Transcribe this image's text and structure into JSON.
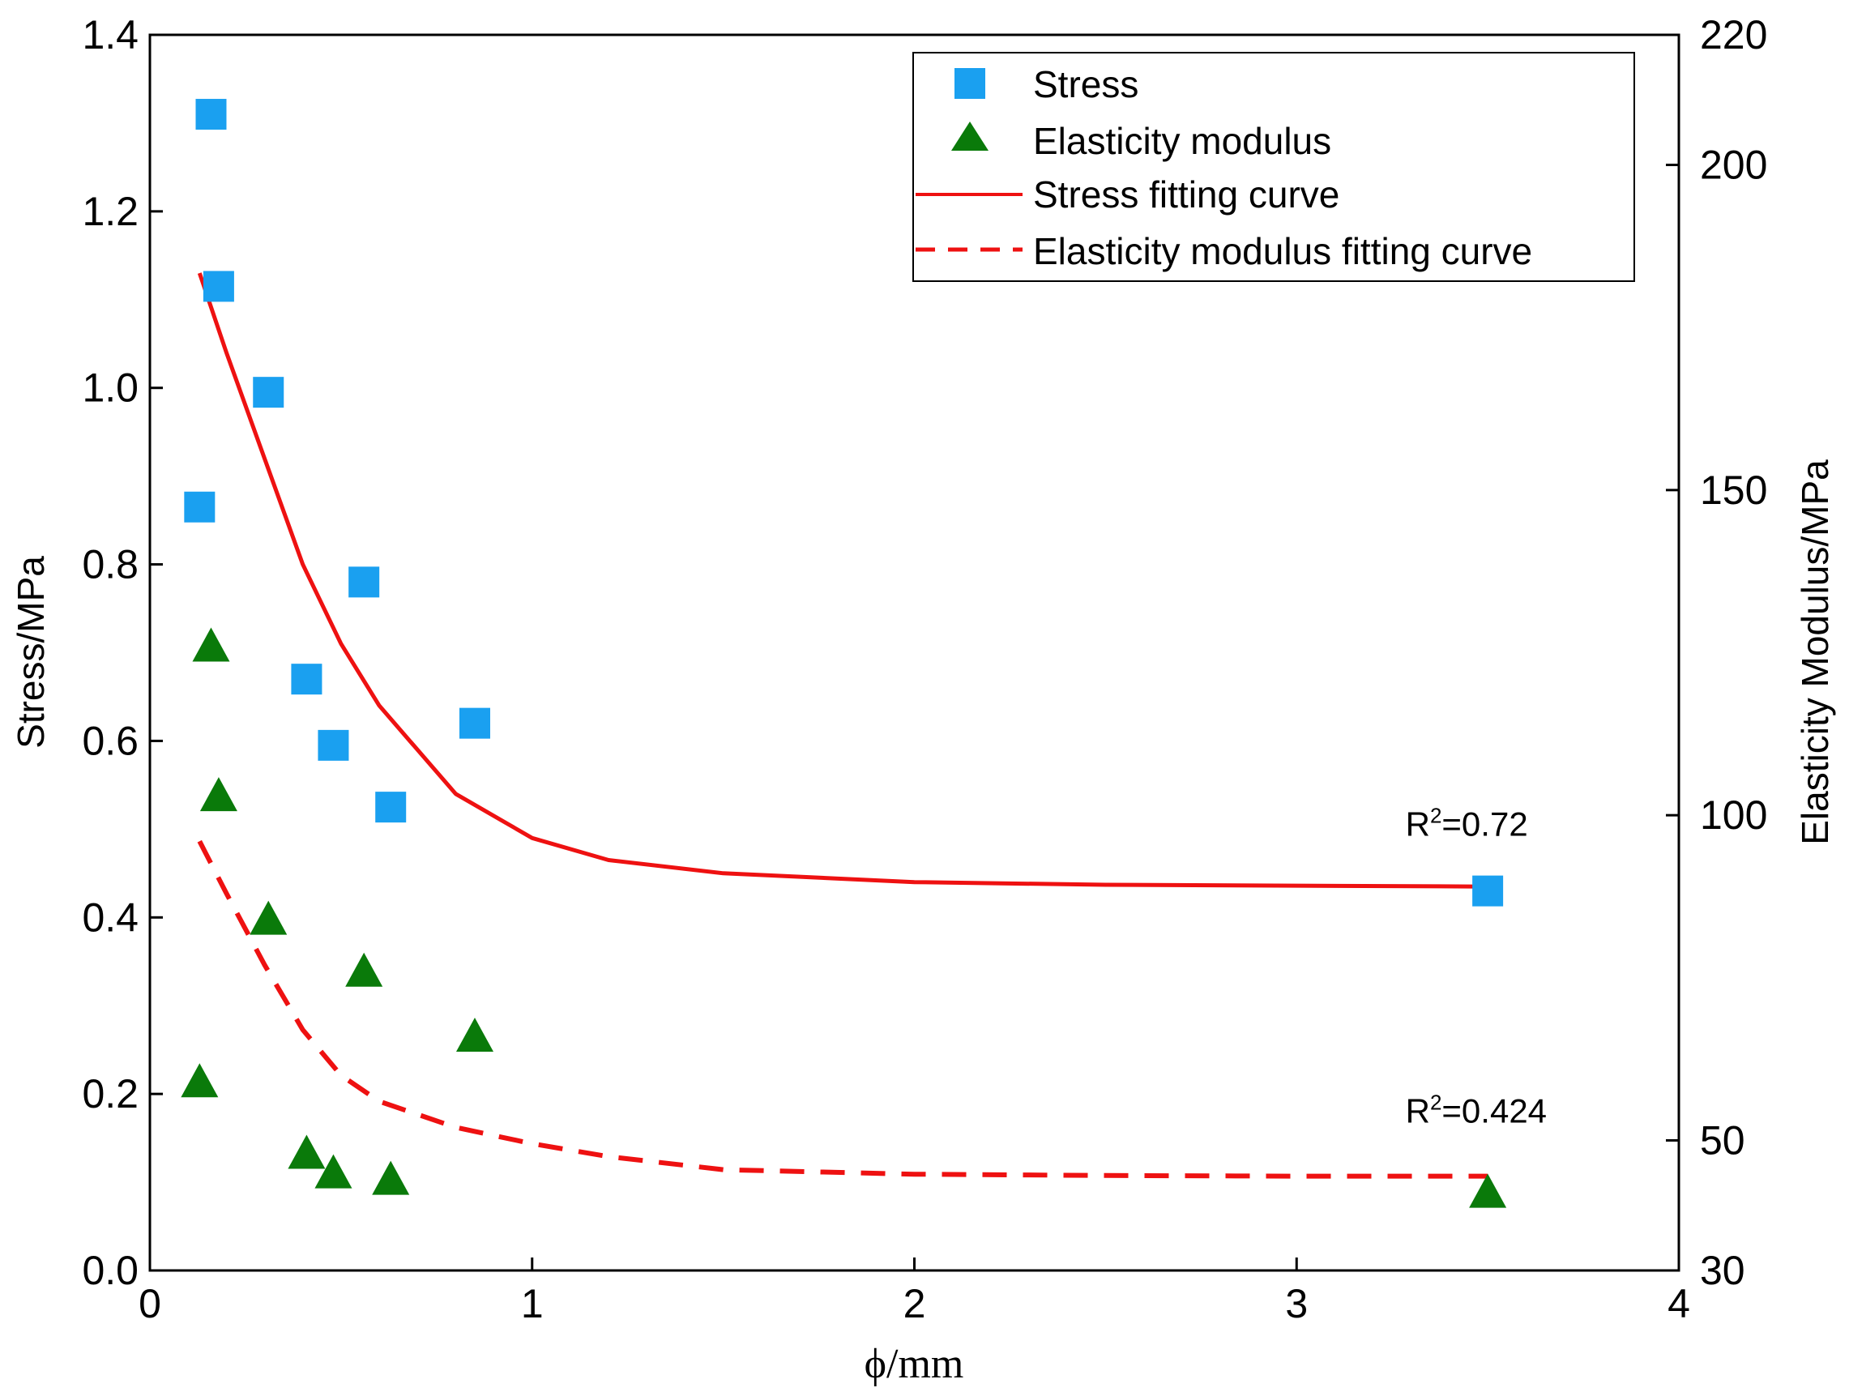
{
  "chart_data": {
    "type": "scatter",
    "title": "",
    "xlabel": "ϕ/mm",
    "ylabel": "Stress/MPa",
    "y2label": "Elasticity Modulus/MPa",
    "xlim": [
      0,
      4
    ],
    "ylim": [
      0,
      1.4
    ],
    "y2lim": [
      30,
      220
    ],
    "x_ticks": [
      "0",
      "1",
      "2",
      "3",
      "4"
    ],
    "y_ticks": [
      "0.0",
      "0.2",
      "0.4",
      "0.6",
      "0.8",
      "1.0",
      "1.2",
      "1.4"
    ],
    "y2_ticks": [
      "30",
      "50",
      "100",
      "150",
      "200",
      "220"
    ],
    "legend_position": "top-right",
    "series": [
      {
        "name": "Stress",
        "marker": "square",
        "color": "#1aa0f0",
        "axis": "left",
        "x": [
          0.13,
          0.16,
          0.18,
          0.31,
          0.41,
          0.48,
          0.56,
          0.63,
          0.85,
          3.5
        ],
        "y": [
          0.865,
          1.31,
          1.115,
          0.995,
          0.67,
          0.595,
          0.78,
          0.525,
          0.62,
          0.43
        ]
      },
      {
        "name": "Elasticity modulus",
        "marker": "triangle",
        "color": "#0a7a0a",
        "axis": "right",
        "x": [
          0.13,
          0.16,
          0.18,
          0.31,
          0.41,
          0.48,
          0.56,
          0.63,
          0.85,
          3.5
        ],
        "y": [
          59,
          126,
          103,
          84,
          48,
          45,
          76,
          44,
          66,
          42
        ]
      },
      {
        "name": "Stress fitting curve",
        "style": "solid",
        "color": "#ee1111",
        "axis": "left",
        "x": [
          0.13,
          0.2,
          0.3,
          0.4,
          0.5,
          0.6,
          0.8,
          1.0,
          1.2,
          1.5,
          2.0,
          2.5,
          3.0,
          3.5
        ],
        "y": [
          1.13,
          1.04,
          0.92,
          0.8,
          0.71,
          0.64,
          0.54,
          0.49,
          0.465,
          0.45,
          0.44,
          0.437,
          0.436,
          0.435
        ]
      },
      {
        "name": "Elasticity modulus fitting curve",
        "style": "dashed",
        "color": "#ee1111",
        "axis": "right",
        "x": [
          0.13,
          0.2,
          0.3,
          0.4,
          0.5,
          0.6,
          0.8,
          1.0,
          1.2,
          1.5,
          2.0,
          2.5,
          3.0,
          3.5
        ],
        "y": [
          96,
          88,
          77,
          67,
          60,
          56,
          52,
          49.5,
          47.5,
          45.5,
          44.8,
          44.6,
          44.5,
          44.5
        ]
      }
    ],
    "annotations": [
      {
        "base": "R",
        "sup": "2",
        "rest": "=0.72",
        "x": 3.2,
        "y": 0.465,
        "axis": "left"
      },
      {
        "base": "R",
        "sup": "2",
        "rest": "=0.424",
        "x": 3.2,
        "y": 0.14,
        "axis": "left"
      }
    ]
  }
}
